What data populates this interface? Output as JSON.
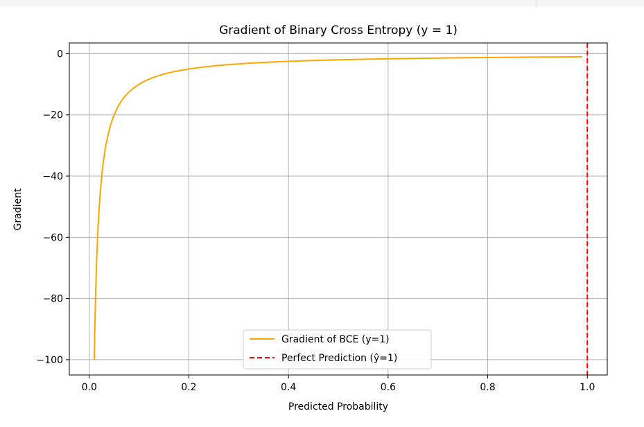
{
  "window": {
    "toolbar_strip": true
  },
  "colors": {
    "series_line": "#FFA500",
    "reference_line": "#FF0000",
    "grid": "#b0b0b0",
    "axes": "#000000",
    "background": "#ffffff"
  },
  "chart_data": {
    "type": "line",
    "title": "Gradient of Binary Cross Entropy (y = 1)",
    "xlabel": "Predicted Probability",
    "ylabel": "Gradient",
    "xlim": [
      -0.04,
      1.04
    ],
    "ylim": [
      -105,
      3.5
    ],
    "grid": true,
    "legend_position": "lower center",
    "xticks": [
      0.0,
      0.2,
      0.4,
      0.6,
      0.8,
      1.0
    ],
    "xtick_labels": [
      "0.0",
      "0.2",
      "0.4",
      "0.6",
      "0.8",
      "1.0"
    ],
    "yticks": [
      0,
      -20,
      -40,
      -60,
      -80,
      -100
    ],
    "ytick_labels": [
      "0",
      "−20",
      "−40",
      "−60",
      "−80",
      "−100"
    ],
    "series": [
      {
        "name": "Gradient of BCE (y=1)",
        "color": "#FFA500",
        "style": "solid",
        "function": "-1/x",
        "x": [
          0.01,
          0.02,
          0.03,
          0.04,
          0.05,
          0.06,
          0.07,
          0.08,
          0.1,
          0.12,
          0.15,
          0.2,
          0.25,
          0.3,
          0.4,
          0.5,
          0.6,
          0.7,
          0.8,
          0.9,
          0.99
        ],
        "y": [
          -100,
          -50,
          -33.33,
          -25,
          -20,
          -16.67,
          -14.29,
          -12.5,
          -10,
          -8.33,
          -6.67,
          -5,
          -4,
          -3.33,
          -2.5,
          -2,
          -1.67,
          -1.43,
          -1.25,
          -1.11,
          -1.01
        ]
      }
    ],
    "reference_lines": [
      {
        "name": "Perfect Prediction (ŷ=1)",
        "orientation": "vertical",
        "x": 1.0,
        "color": "#FF0000",
        "style": "dashed"
      }
    ]
  }
}
